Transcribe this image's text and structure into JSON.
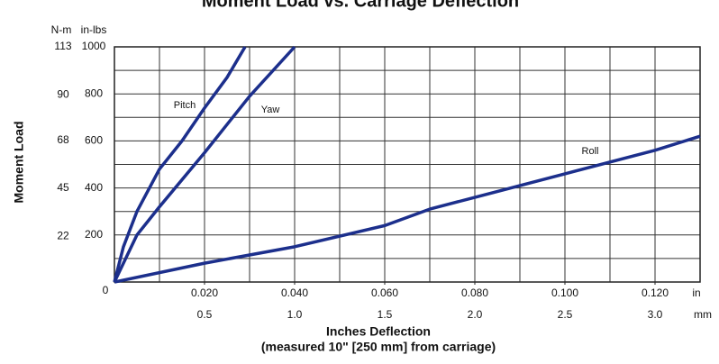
{
  "chart_data": {
    "type": "line",
    "title": "Moment Load vs. Carriage Deflection",
    "y_label": "Moment Load",
    "y_unit": "in-lbs",
    "y2_unit": "N-m",
    "x_label": "Inches Deflection",
    "x_sublabel": "(measured 10\" [250 mm] from carriage)",
    "x_unit": "in",
    "x2_unit": "mm",
    "xlim": [
      0,
      0.13
    ],
    "xticks": [
      {
        "value": 0.02,
        "label": "0.020"
      },
      {
        "value": 0.04,
        "label": "0.040"
      },
      {
        "value": 0.06,
        "label": "0.060"
      },
      {
        "value": 0.08,
        "label": "0.080"
      },
      {
        "value": 0.1,
        "label": "0.100"
      },
      {
        "value": 0.12,
        "label": "0.120"
      }
    ],
    "xgrid": [
      0.01,
      0.02,
      0.03,
      0.04,
      0.05,
      0.06,
      0.07,
      0.08,
      0.09,
      0.1,
      0.11,
      0.12
    ],
    "x2lim": [
      0,
      3.25
    ],
    "x2ticks": [
      0.5,
      {
        "value": 1,
        "label": "1.0"
      },
      1.5,
      {
        "value": 2,
        "label": "2.0"
      },
      2.5,
      {
        "value": 3,
        "label": "3.0"
      }
    ],
    "ylim": [
      0,
      1000
    ],
    "yticks": [
      0,
      200,
      400,
      600,
      800,
      1000
    ],
    "ygrid": [
      100,
      200,
      300,
      400,
      500,
      600,
      700,
      800,
      900
    ],
    "y2lim": [
      0,
      113
    ],
    "y2ticks": [
      22,
      45,
      68,
      90,
      113
    ],
    "grid": true,
    "series": [
      {
        "name": "Pitch",
        "color": "#1c2f8c",
        "x": [
          0,
          0.002,
          0.005,
          0.01,
          0.015,
          0.02,
          0.025,
          0.029
        ],
        "values": [
          0,
          150,
          300,
          480,
          600,
          740,
          870,
          1000
        ]
      },
      {
        "name": "Yaw",
        "color": "#1c2f8c",
        "x": [
          0,
          0.005,
          0.01,
          0.02,
          0.03,
          0.04
        ],
        "values": [
          0,
          200,
          320,
          550,
          790,
          1000
        ]
      },
      {
        "name": "Roll",
        "color": "#1c2f8c",
        "x": [
          0,
          0.02,
          0.04,
          0.06,
          0.07,
          0.08,
          0.1,
          0.12,
          0.13
        ],
        "values": [
          0,
          80,
          150,
          240,
          310,
          360,
          460,
          560,
          620
        ]
      }
    ]
  }
}
